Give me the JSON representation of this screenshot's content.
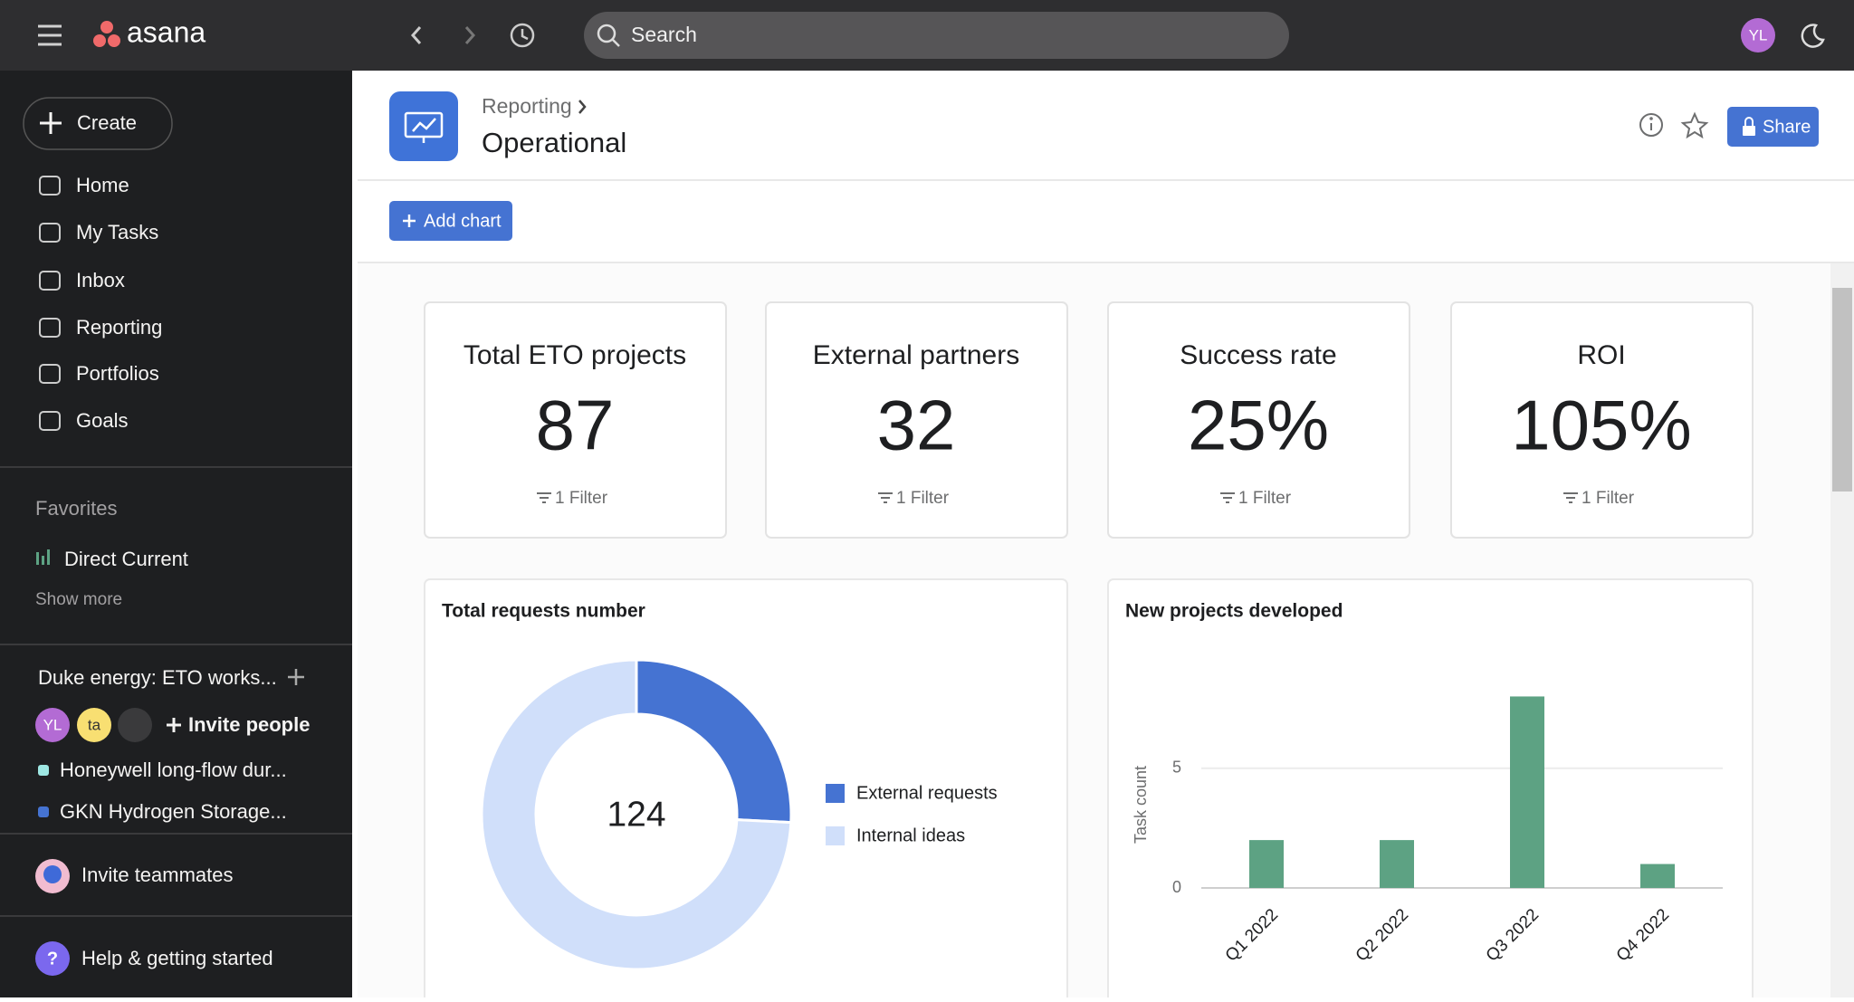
{
  "topbar": {
    "logo": "asana",
    "search": "Search",
    "avatar": "YL"
  },
  "sidebar": {
    "create": "Create",
    "nav": [
      "Home",
      "My Tasks",
      "Inbox",
      "Reporting",
      "Portfolios",
      "Goals"
    ],
    "favorites": "Favorites",
    "favorite_items": [
      "Direct Current"
    ],
    "show_more": "Show more",
    "team": "Duke energy: ETO works...",
    "avatars": [
      "YL",
      "ta"
    ],
    "invite_people": "Invite people",
    "projects": [
      "Honeywell long-flow dur...",
      "GKN Hydrogen Storage..."
    ],
    "invite_teammates": "Invite teammates",
    "help": "Help & getting started"
  },
  "header": {
    "breadcrumb": "Reporting",
    "title": "Operational",
    "share": "Share",
    "add_chart": "Add chart"
  },
  "metrics": [
    {
      "title": "Total ETO projects",
      "value": "87",
      "filter": "1 Filter"
    },
    {
      "title": "External partners",
      "value": "32",
      "filter": "1 Filter"
    },
    {
      "title": "Success rate",
      "value": "25%",
      "filter": "1 Filter"
    },
    {
      "title": "ROI",
      "value": "105%",
      "filter": "1 Filter"
    }
  ],
  "chart_data": [
    {
      "type": "donut",
      "title": "Total requests number",
      "center_label": 124,
      "categories": [
        "External requests",
        "Internal ideas"
      ],
      "values": [
        32,
        92
      ],
      "colors": [
        "#4573d2",
        "#d0dffa"
      ]
    },
    {
      "type": "bar",
      "title": "New projects developed",
      "y_label": "Task count",
      "categories": [
        "Q1 2022",
        "Q2 2022",
        "Q3 2022",
        "Q4 2022"
      ],
      "values": [
        2,
        2,
        8,
        1
      ],
      "color": "#5da283",
      "ylim": [
        0,
        9
      ],
      "yticks": [
        0,
        5
      ],
      "grid": true
    }
  ]
}
